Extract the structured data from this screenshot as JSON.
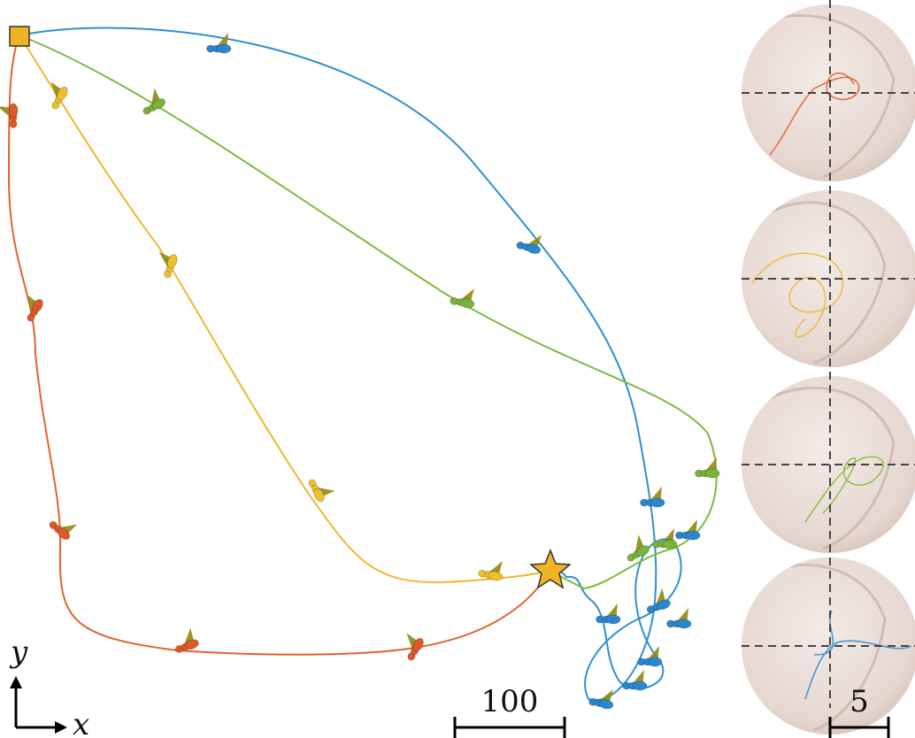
{
  "axes": {
    "y": "y",
    "x": "x"
  },
  "scale_bars": {
    "main": "100",
    "inset": "5"
  }
}
